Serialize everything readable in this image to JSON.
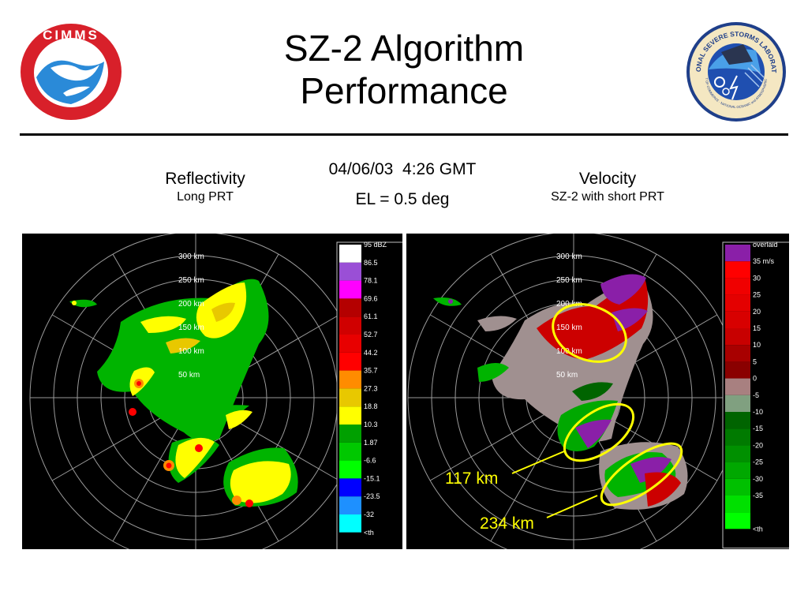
{
  "slide": {
    "title_line1": "SZ-2 Algorithm",
    "title_line2": "Performance",
    "logo_left_text": "CIMMS",
    "logo_right_text": "NATIONAL SEVERE STORMS LABORATORY",
    "logo_right_subtext": "U.S. DEPARTMENT OF COMMERCE · NATIONAL OCEANIC and ATMOSPHERIC ADMINISTRATION"
  },
  "headers": {
    "datetime": "04/06/03  4:26 GMT",
    "elevation": "EL = 0.5 deg",
    "left_title": "Reflectivity",
    "left_sub": "Long PRT",
    "right_title": "Velocity",
    "right_sub": "SZ-2 with short PRT"
  },
  "range_labels": [
    "300 km",
    "250 km",
    "200 km",
    "150 km",
    "100 km",
    "50 km"
  ],
  "reflectivity_scale": [
    {
      "label": "95 dBZ",
      "color": "#ffffff"
    },
    {
      "label": "86.5",
      "color": "#9a4fd6"
    },
    {
      "label": "78.1",
      "color": "#ff00ff"
    },
    {
      "label": "69.6",
      "color": "#b40000"
    },
    {
      "label": "61.1",
      "color": "#d00000"
    },
    {
      "label": "52.7",
      "color": "#e80000"
    },
    {
      "label": "44.2",
      "color": "#ff0000"
    },
    {
      "label": "35.7",
      "color": "#ff8c00"
    },
    {
      "label": "27.3",
      "color": "#e8c800"
    },
    {
      "label": "18.8",
      "color": "#ffff00"
    },
    {
      "label": "10.3",
      "color": "#00a000"
    },
    {
      "label": "1.87",
      "color": "#00c800"
    },
    {
      "label": "-6.6",
      "color": "#00ff00"
    },
    {
      "label": "-15.1",
      "color": "#0000ff"
    },
    {
      "label": "-23.5",
      "color": "#1e90ff"
    },
    {
      "label": "-32",
      "color": "#00ffff"
    },
    {
      "label": "<th",
      "color": "#000000"
    }
  ],
  "velocity_scale": [
    {
      "label": "overlaid",
      "color": "#8a1fa8"
    },
    {
      "label": "35 m/s",
      "color": "#ff0000"
    },
    {
      "label": "30",
      "color": "#f00000"
    },
    {
      "label": "25",
      "color": "#e40000"
    },
    {
      "label": "20",
      "color": "#d80000"
    },
    {
      "label": "15",
      "color": "#c80000"
    },
    {
      "label": "10",
      "color": "#a80000"
    },
    {
      "label": "5",
      "color": "#8a0000"
    },
    {
      "label": "0",
      "color": "#a88080"
    },
    {
      "label": "-5",
      "color": "#80a080"
    },
    {
      "label": "-10",
      "color": "#006400"
    },
    {
      "label": "-15",
      "color": "#007a00"
    },
    {
      "label": "-20",
      "color": "#009000"
    },
    {
      "label": "-25",
      "color": "#00a800"
    },
    {
      "label": "-30",
      "color": "#00c000"
    },
    {
      "label": "-35",
      "color": "#00e000"
    },
    {
      "label": "",
      "color": "#00ff00"
    },
    {
      "label": "<th",
      "color": "#000000"
    }
  ],
  "callouts": {
    "c1": "117 km",
    "c2": "234 km"
  },
  "colors": {
    "highlight": "#ffff00",
    "panel_bg": "#000000",
    "ring": "#9a9a9a"
  }
}
